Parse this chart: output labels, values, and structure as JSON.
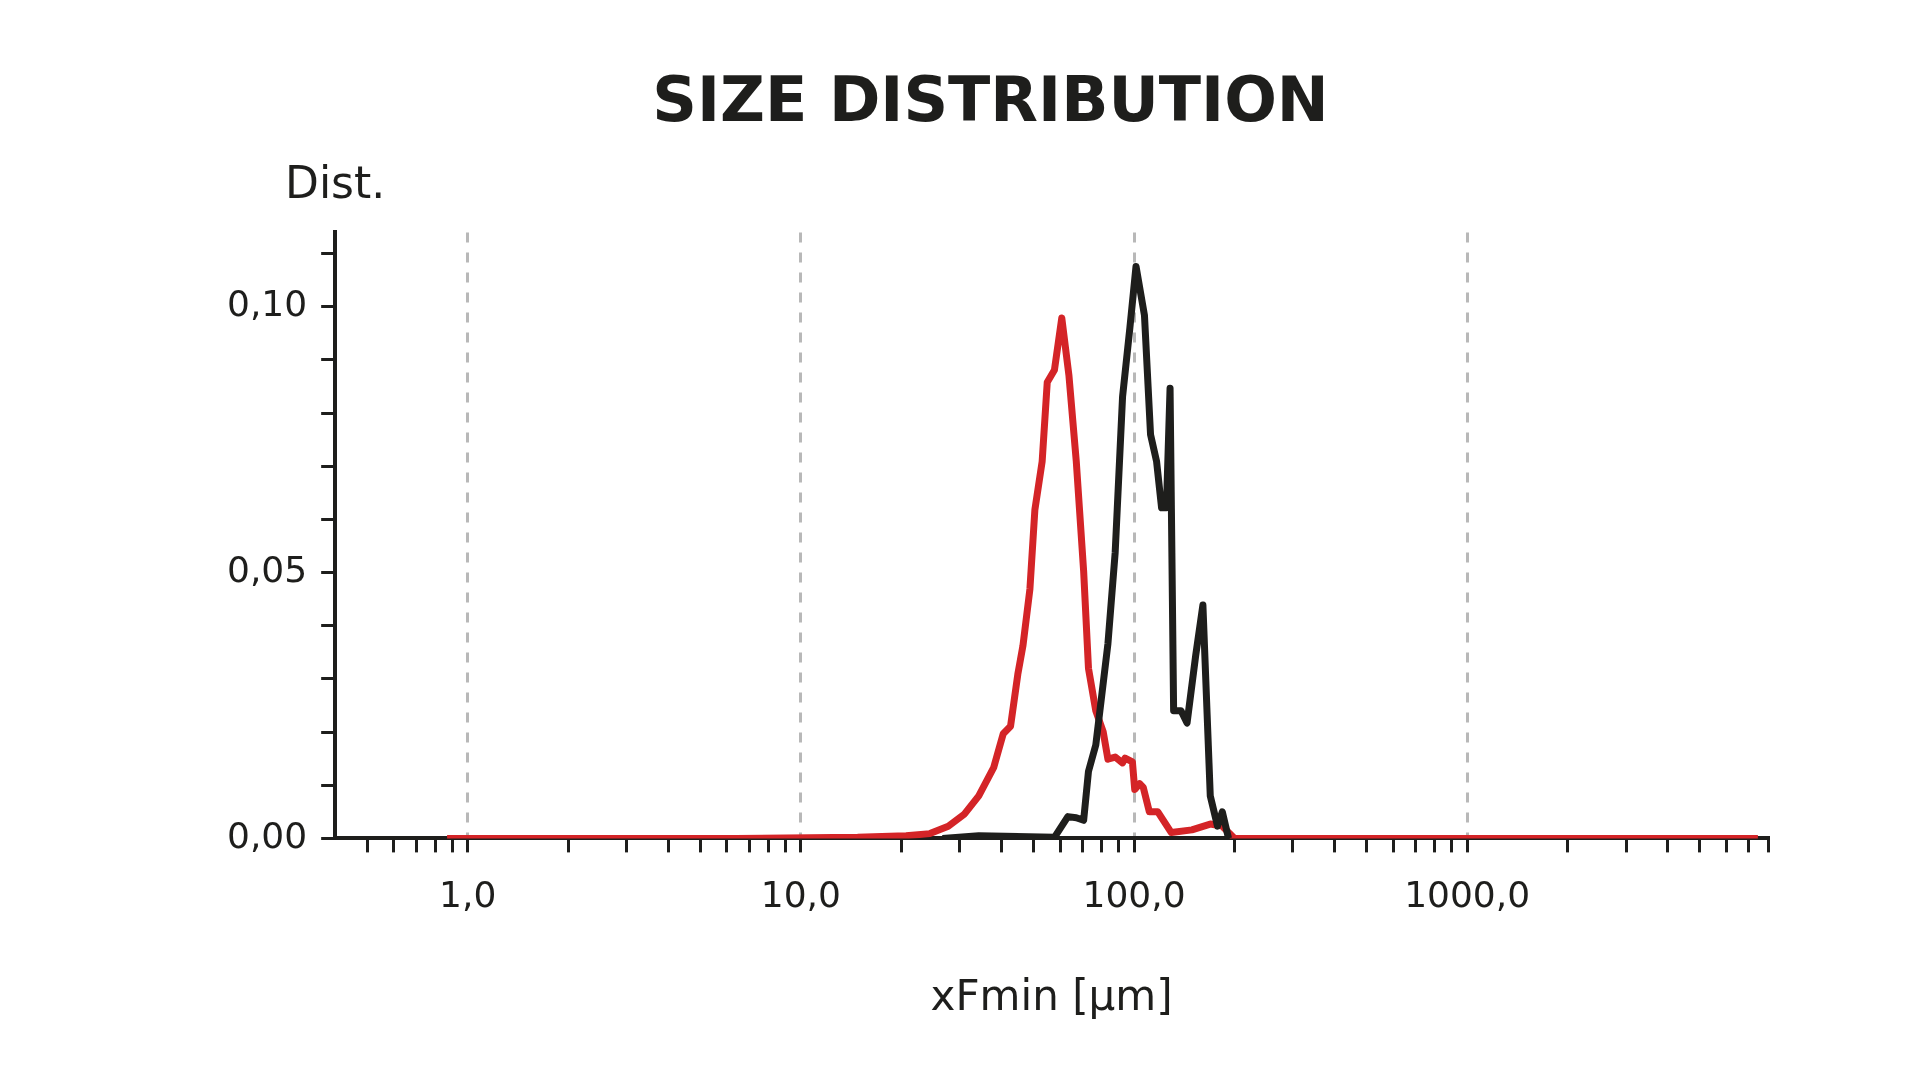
{
  "chart_data": {
    "type": "line",
    "title": "SIZE DISTRIBUTION",
    "ylabel": "Dist.",
    "xlabel": "xFmin [µm]",
    "log": "x",
    "grid": "x",
    "legend": false,
    "marker": "none",
    "line_style": "solid",
    "xlim": [
      0.4,
      8000
    ],
    "xticks": [
      {
        "value": 0.5,
        "label": null
      },
      {
        "value": 0.6,
        "label": null
      },
      {
        "value": 0.7,
        "label": null
      },
      {
        "value": 0.8,
        "label": null
      },
      {
        "value": 0.9,
        "label": null
      },
      {
        "value": 1,
        "label": "1,0"
      },
      {
        "value": 2,
        "label": null
      },
      {
        "value": 3,
        "label": null
      },
      {
        "value": 4,
        "label": null
      },
      {
        "value": 5,
        "label": null
      },
      {
        "value": 6,
        "label": null
      },
      {
        "value": 7,
        "label": null
      },
      {
        "value": 8,
        "label": null
      },
      {
        "value": 9,
        "label": null
      },
      {
        "value": 10,
        "label": "10,0"
      },
      {
        "value": 20,
        "label": null
      },
      {
        "value": 30,
        "label": null
      },
      {
        "value": 40,
        "label": null
      },
      {
        "value": 50,
        "label": null
      },
      {
        "value": 60,
        "label": null
      },
      {
        "value": 70,
        "label": null
      },
      {
        "value": 80,
        "label": null
      },
      {
        "value": 90,
        "label": null
      },
      {
        "value": 100,
        "label": "100,0"
      },
      {
        "value": 200,
        "label": null
      },
      {
        "value": 300,
        "label": null
      },
      {
        "value": 400,
        "label": null
      },
      {
        "value": 500,
        "label": null
      },
      {
        "value": 600,
        "label": null
      },
      {
        "value": 700,
        "label": null
      },
      {
        "value": 800,
        "label": null
      },
      {
        "value": 900,
        "label": null
      },
      {
        "value": 1000,
        "label": "1000,0"
      },
      {
        "value": 2000,
        "label": null
      },
      {
        "value": 3000,
        "label": null
      },
      {
        "value": 4000,
        "label": null
      },
      {
        "value": 5000,
        "label": null
      },
      {
        "value": 6000,
        "label": null
      },
      {
        "value": 7000,
        "label": null
      },
      {
        "value": 8000,
        "label": null
      }
    ],
    "ylim": [
      0,
      0.114
    ],
    "yticks": [
      {
        "value": 0,
        "label": "0,00"
      },
      {
        "value": 0.01,
        "label": null
      },
      {
        "value": 0.02,
        "label": null
      },
      {
        "value": 0.03,
        "label": null
      },
      {
        "value": 0.04,
        "label": null
      },
      {
        "value": 0.05,
        "label": "0,05"
      },
      {
        "value": 0.06,
        "label": null
      },
      {
        "value": 0.07,
        "label": null
      },
      {
        "value": 0.08,
        "label": null
      },
      {
        "value": 0.09,
        "label": null
      },
      {
        "value": 0.1,
        "label": "0,10"
      },
      {
        "value": 0.11,
        "label": null
      }
    ],
    "series": [
      {
        "color": "#1e1e1c",
        "x": [
          26.6,
          34.2,
          57.7,
          63.3,
          67.1,
          70.6,
          73.0,
          76.8,
          83.5,
          87.8,
          92.4,
          97.2,
          101.4,
          107.5,
          112.1,
          116.9,
          121.0,
          125.1,
          128.3,
          131.5,
          138.4,
          144.3,
          153.1,
          161.0,
          169.4,
          178.1,
          184.1,
          192.2
        ],
        "values": [
          0,
          0.0005,
          0.0002,
          0.0041,
          0.0039,
          0.0034,
          0.0126,
          0.0176,
          0.0366,
          0.0538,
          0.0831,
          0.0961,
          0.1076,
          0.0984,
          0.076,
          0.0709,
          0.0622,
          0.0622,
          0.0847,
          0.024,
          0.024,
          0.0217,
          0.0343,
          0.0439,
          0.008,
          0.0023,
          0.005,
          0
        ]
      },
      {
        "color": "#d42427",
        "x": [
          0.867,
          6.37,
          14.8,
          20.7,
          24.4,
          27.7,
          31.0,
          34.2,
          37.9,
          40.5,
          42.6,
          44.8,
          46.4,
          48.7,
          50.4,
          53.0,
          54.9,
          57.7,
          60.7,
          63.8,
          67.1,
          70.6,
          73.0,
          76.8,
          80.8,
          83.5,
          87.8,
          92.4,
          94.0,
          98.9,
          100.5,
          104.0,
          106.6,
          111.2,
          117.9,
          129.4,
          149.2,
          169.4,
          184.1,
          200.4,
          991,
          7460
        ],
        "values": [
          0,
          0,
          0.0002,
          0.0005,
          0.0009,
          0.0023,
          0.0046,
          0.008,
          0.0133,
          0.0197,
          0.0211,
          0.0309,
          0.0362,
          0.0469,
          0.0618,
          0.0709,
          0.0858,
          0.0881,
          0.0979,
          0.087,
          0.0709,
          0.0503,
          0.032,
          0.024,
          0.0201,
          0.0149,
          0.0153,
          0.0142,
          0.0151,
          0.0144,
          0.0092,
          0.0103,
          0.0096,
          0.005,
          0.005,
          0.0011,
          0.0016,
          0.0027,
          0.0023,
          0,
          0,
          0
        ]
      }
    ]
  }
}
